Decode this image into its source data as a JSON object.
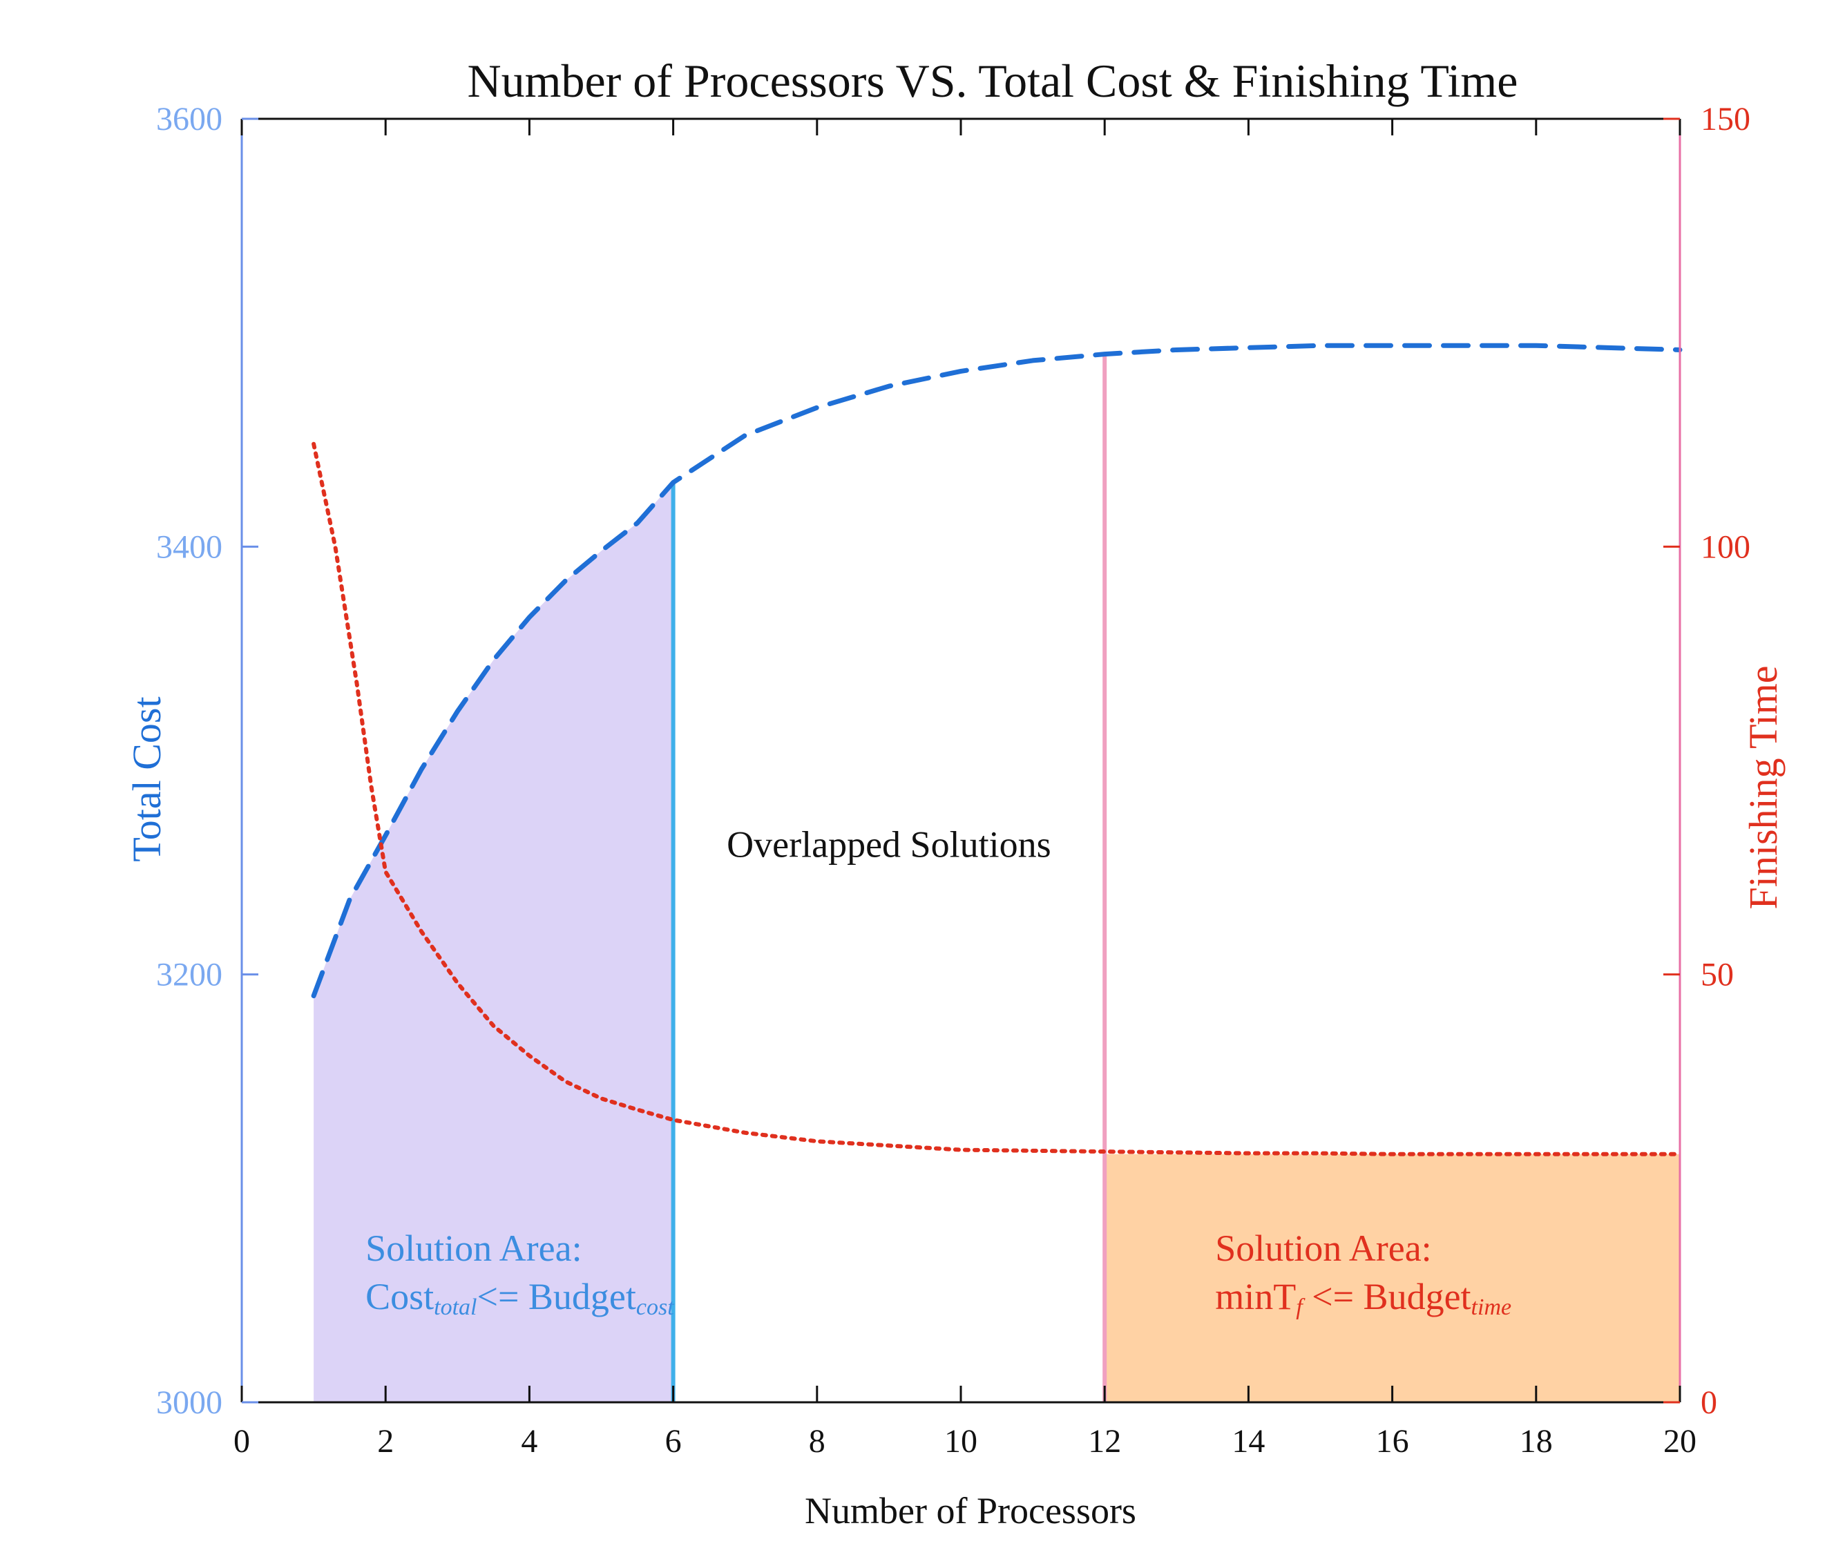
{
  "chart_data": {
    "type": "line",
    "title": "Number of Processors VS. Total Cost & Finishing Time",
    "xlabel": "Number of Processors",
    "ylabel_left": "Total Cost",
    "ylabel_right": "Finishing Time",
    "xlim": [
      0,
      20
    ],
    "ylim_left": [
      3000,
      3600
    ],
    "ylim_right": [
      0,
      150
    ],
    "x_ticks": [
      0,
      2,
      4,
      6,
      8,
      10,
      12,
      14,
      16,
      18,
      20
    ],
    "y_left_ticks": [
      3000,
      3200,
      3400,
      3600
    ],
    "y_right_ticks": [
      0,
      50,
      100,
      150
    ],
    "grid": false,
    "series": [
      {
        "axis": "left",
        "style": "dashed",
        "color": "#1f6fd6",
        "x": [
          1,
          1.5,
          2,
          2.5,
          3,
          3.5,
          4,
          4.5,
          5,
          5.5,
          6,
          7,
          8,
          9,
          10,
          11,
          12,
          13,
          14,
          15,
          16,
          17,
          18,
          19,
          20
        ],
        "y": [
          3190,
          3235,
          3265,
          3296,
          3323,
          3347,
          3367,
          3384,
          3398,
          3411,
          3430,
          3452,
          3465,
          3475,
          3482,
          3487,
          3490,
          3492,
          3493,
          3494,
          3494,
          3494,
          3494,
          3493,
          3492
        ]
      },
      {
        "axis": "right",
        "style": "dotted",
        "color": "#e0301e",
        "x": [
          1,
          1.3,
          1.6,
          1.8,
          2,
          2.5,
          3,
          3.5,
          4,
          4.5,
          5,
          5.5,
          6,
          7,
          8,
          9,
          10,
          11,
          12,
          13,
          14,
          15,
          16,
          17,
          18,
          19,
          20
        ],
        "y": [
          112,
          100,
          84,
          72,
          62,
          55,
          49,
          44,
          40.5,
          37.5,
          35.5,
          34.2,
          33,
          31.5,
          30.5,
          30,
          29.5,
          29.4,
          29.3,
          29.2,
          29.1,
          29.1,
          29,
          29,
          29,
          29,
          29
        ]
      }
    ],
    "regions": [
      {
        "x_start": 1,
        "x_end": 6,
        "color": "#dcd3f7",
        "label_line1": "Solution Area:",
        "label_line2_main": "Cost",
        "label_line2_sub": "total",
        "label_line2_op": "<= Budget",
        "label_line2_sub2": "cost",
        "label_color": "#3c8de0"
      },
      {
        "x_start": 12,
        "x_end": 20,
        "top_value_right": 29,
        "color": "#ffd2a4",
        "label_line1": "Solution Area:",
        "label_line2_main": "minT",
        "label_line2_sub": "f",
        "label_line2_op": " <= Budget",
        "label_line2_sub2": "time",
        "label_color": "#e0301e"
      }
    ],
    "vertical_lines": [
      {
        "x": 6,
        "color": "#3fb0ea",
        "top_value_left": 3430
      },
      {
        "x": 12,
        "color": "#f0a0c0",
        "top_value_left": 3490
      }
    ],
    "annotations": [
      {
        "text": "Overlapped Solutions",
        "x": 9,
        "y_left": 3255
      }
    ],
    "colors": {
      "left_axis": "#6a8fe8",
      "right_axis": "#e0301e",
      "left_tick_labels": "#7aa8f0"
    }
  }
}
